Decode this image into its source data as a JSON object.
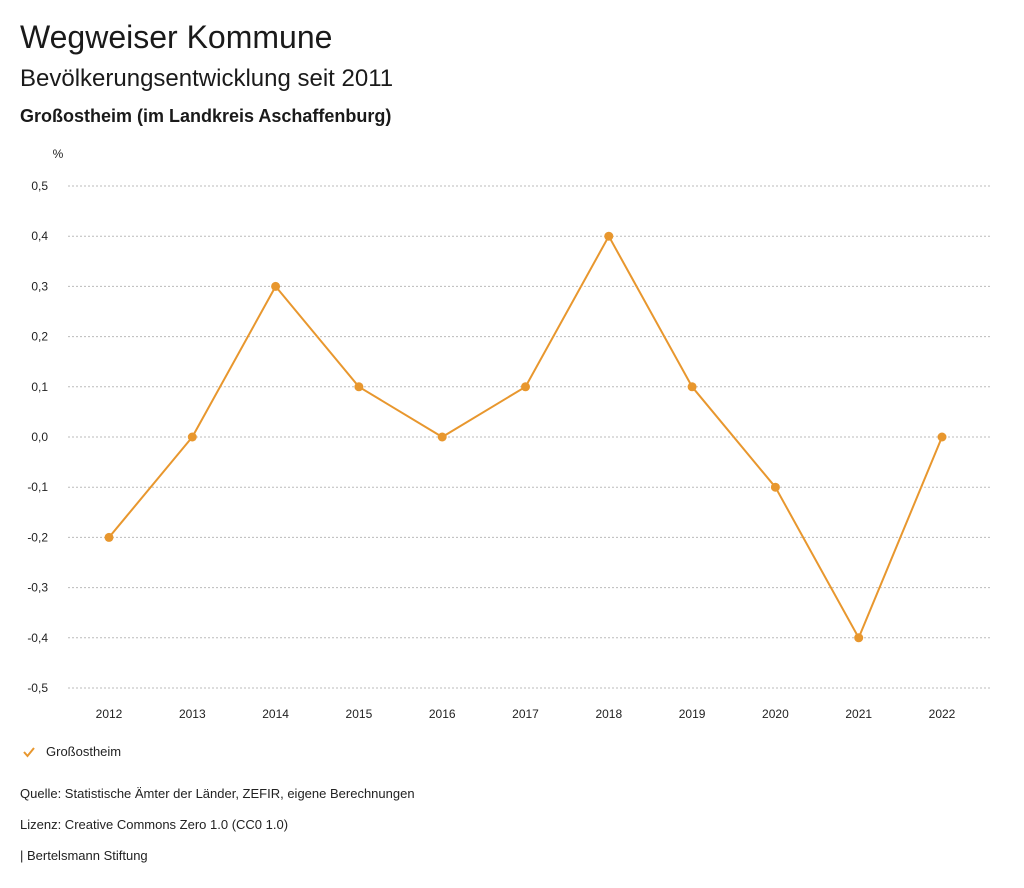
{
  "header": {
    "title": "Wegweiser Kommune",
    "subtitle": "Bevölkerungsentwicklung seit 2011",
    "region": "Großostheim (im Landkreis Aschaffenburg)"
  },
  "chart_data": {
    "type": "line",
    "title": "Bevölkerungsentwicklung seit 2011",
    "xlabel": "",
    "ylabel": "%",
    "categories": [
      "2012",
      "2013",
      "2014",
      "2015",
      "2016",
      "2017",
      "2018",
      "2019",
      "2020",
      "2021",
      "2022"
    ],
    "series": [
      {
        "name": "Großostheim",
        "color": "#e8972e",
        "values": [
          -0.2,
          0.0,
          0.3,
          0.1,
          0.0,
          0.1,
          0.4,
          0.1,
          -0.1,
          -0.4,
          0.0
        ]
      }
    ],
    "ylim": [
      -0.5,
      0.5
    ],
    "yticks": [
      0.5,
      0.4,
      0.3,
      0.2,
      0.1,
      0.0,
      -0.1,
      -0.2,
      -0.3,
      -0.4,
      -0.5
    ],
    "ytick_labels": [
      "0,5",
      "0,4",
      "0,3",
      "0,2",
      "0,1",
      "0,0",
      "-0,1",
      "-0,2",
      "-0,3",
      "-0,4",
      "-0,5"
    ],
    "grid": true,
    "legend": "bottom-left"
  },
  "legend": {
    "label": "Großostheim",
    "icon": "checkmark-icon"
  },
  "footer": {
    "source": "Quelle: Statistische Ämter der Länder, ZEFIR, eigene Berechnungen",
    "license": "Lizenz: Creative Commons Zero 1.0 (CC0 1.0)",
    "publisher": "| Bertelsmann Stiftung"
  },
  "colors": {
    "series": "#e8972e",
    "grid": "#bbbbbb",
    "text": "#1a1a1a"
  }
}
